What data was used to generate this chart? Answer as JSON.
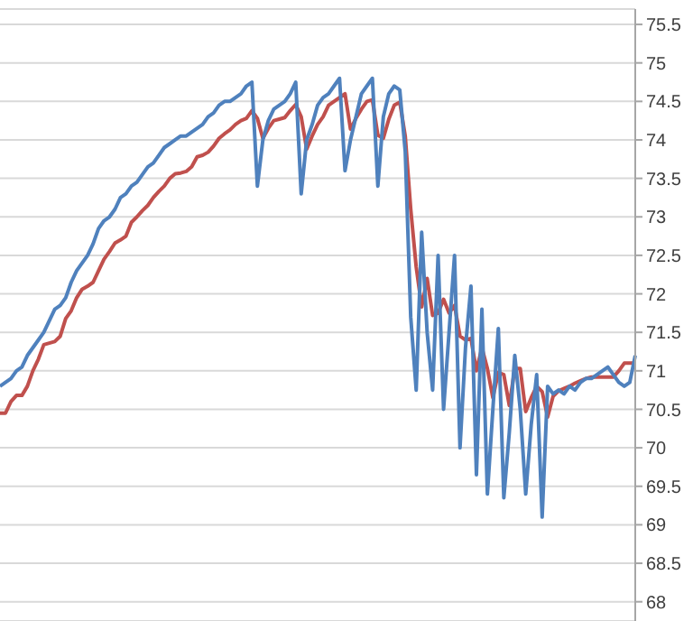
{
  "chart_data": {
    "type": "line",
    "categories": [
      null,
      null,
      null,
      null,
      null,
      null,
      null,
      null,
      null,
      null,
      null,
      null,
      null,
      null,
      null,
      null,
      null,
      null,
      null,
      null,
      null,
      null,
      null,
      null,
      null,
      null,
      null,
      null,
      null,
      null,
      null,
      null,
      null,
      null,
      null,
      null,
      null,
      null,
      null,
      null,
      null,
      null,
      null,
      null,
      null,
      null,
      null,
      null,
      null,
      null,
      null,
      null,
      null,
      null,
      null,
      null,
      null,
      null,
      null,
      null,
      null,
      null,
      null,
      null,
      null,
      null,
      null,
      null,
      null,
      null,
      null,
      null,
      null,
      null,
      null,
      null,
      null,
      null,
      null,
      null,
      null,
      null,
      null,
      null,
      null,
      null,
      null,
      null,
      null,
      null,
      null,
      null,
      null,
      null,
      null,
      null,
      null,
      null,
      null,
      null,
      null,
      null,
      null,
      null,
      null,
      null,
      null,
      null,
      null,
      null,
      null,
      null,
      null,
      null,
      null,
      null,
      null
    ],
    "series": [
      {
        "color": "#c0504d",
        "values": [
          70.45,
          70.45,
          70.6,
          70.68,
          70.68,
          70.8,
          71.0,
          71.15,
          71.34,
          71.36,
          71.38,
          71.45,
          71.68,
          71.78,
          71.95,
          72.06,
          72.1,
          72.15,
          72.3,
          72.45,
          72.55,
          72.66,
          72.7,
          72.75,
          72.93,
          73.0,
          73.08,
          73.15,
          73.25,
          73.33,
          73.4,
          73.5,
          73.56,
          73.57,
          73.59,
          73.65,
          73.78,
          73.8,
          73.84,
          73.92,
          74.02,
          74.08,
          74.13,
          74.2,
          74.25,
          74.28,
          74.38,
          74.28,
          74.02,
          74.15,
          74.25,
          74.27,
          74.29,
          74.38,
          74.46,
          74.3,
          73.88,
          74.05,
          74.2,
          74.3,
          74.45,
          74.5,
          74.55,
          74.6,
          74.14,
          74.28,
          74.4,
          74.5,
          74.52,
          74.06,
          74.02,
          74.27,
          74.45,
          74.49,
          74.05,
          73.1,
          72.35,
          71.83,
          72.2,
          71.72,
          71.75,
          71.93,
          71.75,
          71.85,
          71.45,
          71.4,
          71.42,
          71.0,
          71.3,
          71.03,
          70.65,
          70.98,
          70.95,
          70.55,
          71.03,
          71.03,
          70.47,
          70.65,
          70.8,
          70.73,
          70.4,
          70.67,
          70.74,
          70.77,
          70.8,
          70.84,
          70.87,
          70.9,
          70.92,
          70.92,
          70.92,
          70.92,
          70.92,
          71.0,
          71.1,
          71.1,
          71.1
        ]
      },
      {
        "color": "#4f81bd",
        "values": [
          70.8,
          70.85,
          70.9,
          71.0,
          71.05,
          71.2,
          71.3,
          71.4,
          71.5,
          71.65,
          71.8,
          71.85,
          71.95,
          72.15,
          72.3,
          72.4,
          72.5,
          72.65,
          72.85,
          72.95,
          73.0,
          73.1,
          73.25,
          73.3,
          73.4,
          73.45,
          73.55,
          73.65,
          73.7,
          73.8,
          73.9,
          73.95,
          74.0,
          74.05,
          74.05,
          74.1,
          74.15,
          74.2,
          74.3,
          74.35,
          74.45,
          74.5,
          74.5,
          74.55,
          74.6,
          74.7,
          74.75,
          73.4,
          74.0,
          74.25,
          74.4,
          74.45,
          74.5,
          74.6,
          74.75,
          73.3,
          74.0,
          74.2,
          74.45,
          74.55,
          74.6,
          74.7,
          74.8,
          73.6,
          74.0,
          74.3,
          74.6,
          74.7,
          74.8,
          73.4,
          74.3,
          74.6,
          74.7,
          74.65,
          73.85,
          71.7,
          70.75,
          72.8,
          71.5,
          70.75,
          72.5,
          70.5,
          71.5,
          72.5,
          70.0,
          71.3,
          72.1,
          69.65,
          71.8,
          69.4,
          70.5,
          71.55,
          69.35,
          70.2,
          71.2,
          70.5,
          69.4,
          70.3,
          70.95,
          69.1,
          70.8,
          70.7,
          70.75,
          70.7,
          70.8,
          70.75,
          70.85,
          70.9,
          70.9,
          70.95,
          71.0,
          71.05,
          70.95,
          70.85,
          70.8,
          70.85,
          71.2
        ]
      }
    ],
    "ylim": [
      67.75,
      75.7
    ],
    "yticks": [
      68,
      68.5,
      69,
      69.5,
      70,
      70.5,
      71,
      71.5,
      72,
      72.5,
      73,
      73.5,
      74,
      74.5,
      75,
      75.5
    ],
    "grid": "y",
    "tick_labels": "y",
    "marker": "none",
    "line_style": "solid"
  }
}
